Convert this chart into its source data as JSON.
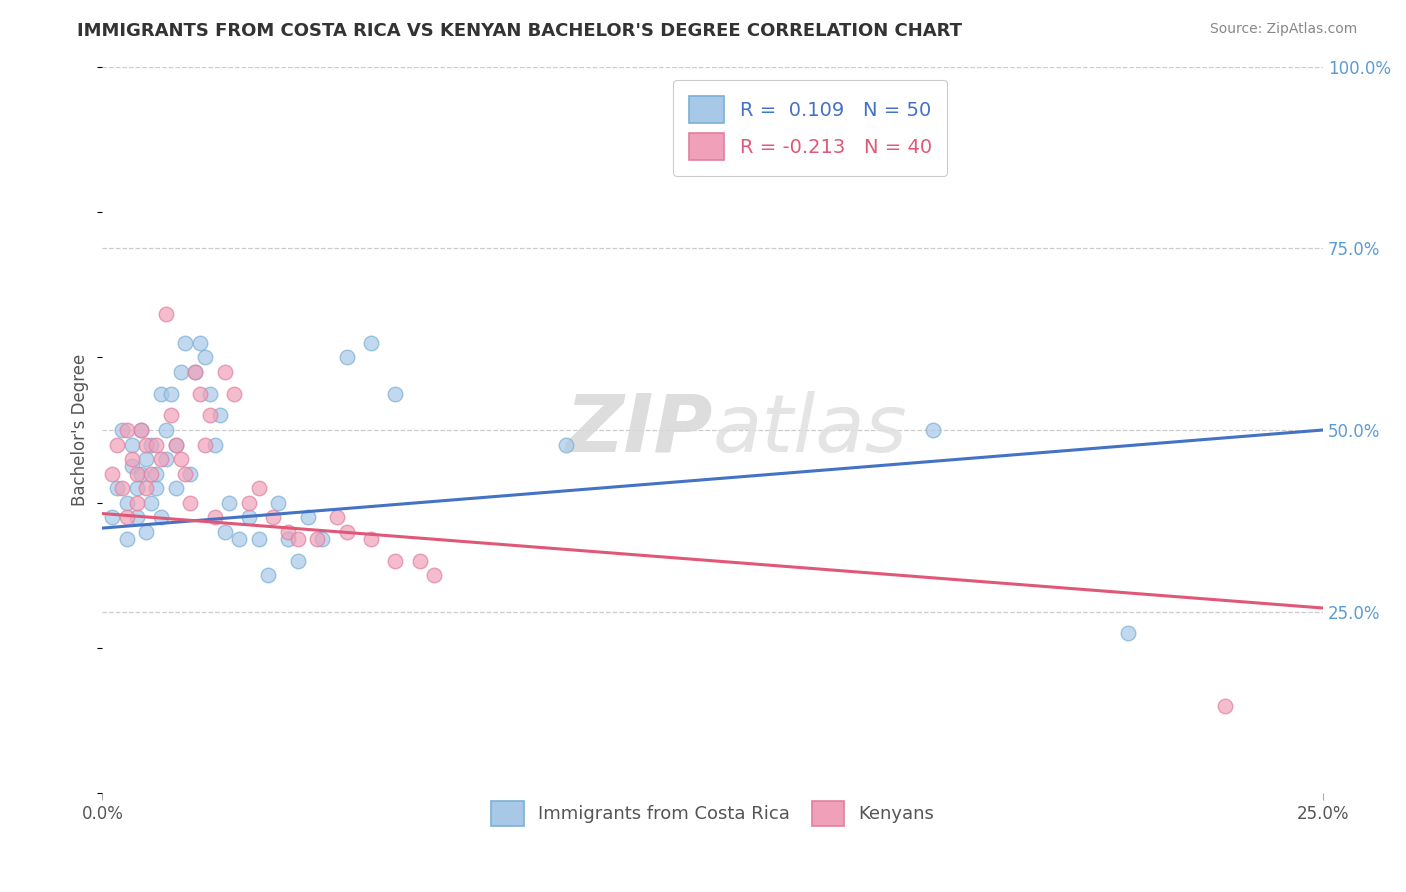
{
  "title": "IMMIGRANTS FROM COSTA RICA VS KENYAN BACHELOR'S DEGREE CORRELATION CHART",
  "source_text": "Source: ZipAtlas.com",
  "ylabel": "Bachelor's Degree",
  "xlim": [
    0.0,
    0.25
  ],
  "ylim": [
    0.0,
    1.0
  ],
  "ytick_positions": [
    0.25,
    0.5,
    0.75,
    1.0
  ],
  "watermark_zip": "ZIP",
  "watermark_atlas": "atlas",
  "color_blue": "#a8c8e8",
  "color_pink": "#f0a0b8",
  "line_color_blue": "#4472c4",
  "line_color_pink": "#e05878",
  "tick_color": "#5b9bd5",
  "blue_line_x0": 0.0,
  "blue_line_y0": 0.365,
  "blue_line_x1": 0.25,
  "blue_line_y1": 0.5,
  "pink_line_x0": 0.0,
  "pink_line_y0": 0.385,
  "pink_line_x1": 0.25,
  "pink_line_y1": 0.255,
  "blue_scatter_x": [
    0.002,
    0.003,
    0.004,
    0.005,
    0.005,
    0.006,
    0.006,
    0.007,
    0.007,
    0.008,
    0.008,
    0.009,
    0.009,
    0.01,
    0.01,
    0.011,
    0.011,
    0.012,
    0.012,
    0.013,
    0.013,
    0.014,
    0.015,
    0.015,
    0.016,
    0.017,
    0.018,
    0.019,
    0.02,
    0.021,
    0.022,
    0.023,
    0.024,
    0.025,
    0.026,
    0.028,
    0.03,
    0.032,
    0.034,
    0.036,
    0.038,
    0.04,
    0.042,
    0.045,
    0.05,
    0.055,
    0.06,
    0.095,
    0.17,
    0.21
  ],
  "blue_scatter_y": [
    0.38,
    0.42,
    0.5,
    0.4,
    0.35,
    0.45,
    0.48,
    0.38,
    0.42,
    0.5,
    0.44,
    0.46,
    0.36,
    0.4,
    0.48,
    0.42,
    0.44,
    0.38,
    0.55,
    0.46,
    0.5,
    0.55,
    0.42,
    0.48,
    0.58,
    0.62,
    0.44,
    0.58,
    0.62,
    0.6,
    0.55,
    0.48,
    0.52,
    0.36,
    0.4,
    0.35,
    0.38,
    0.35,
    0.3,
    0.4,
    0.35,
    0.32,
    0.38,
    0.35,
    0.6,
    0.62,
    0.55,
    0.48,
    0.5,
    0.22
  ],
  "pink_scatter_x": [
    0.002,
    0.003,
    0.004,
    0.005,
    0.005,
    0.006,
    0.007,
    0.007,
    0.008,
    0.009,
    0.009,
    0.01,
    0.011,
    0.012,
    0.013,
    0.014,
    0.015,
    0.016,
    0.017,
    0.018,
    0.019,
    0.02,
    0.021,
    0.022,
    0.023,
    0.025,
    0.027,
    0.03,
    0.032,
    0.035,
    0.038,
    0.04,
    0.044,
    0.048,
    0.05,
    0.055,
    0.06,
    0.065,
    0.068,
    0.23
  ],
  "pink_scatter_y": [
    0.44,
    0.48,
    0.42,
    0.5,
    0.38,
    0.46,
    0.4,
    0.44,
    0.5,
    0.48,
    0.42,
    0.44,
    0.48,
    0.46,
    0.66,
    0.52,
    0.48,
    0.46,
    0.44,
    0.4,
    0.58,
    0.55,
    0.48,
    0.52,
    0.38,
    0.58,
    0.55,
    0.4,
    0.42,
    0.38,
    0.36,
    0.35,
    0.35,
    0.38,
    0.36,
    0.35,
    0.32,
    0.32,
    0.3,
    0.12
  ]
}
